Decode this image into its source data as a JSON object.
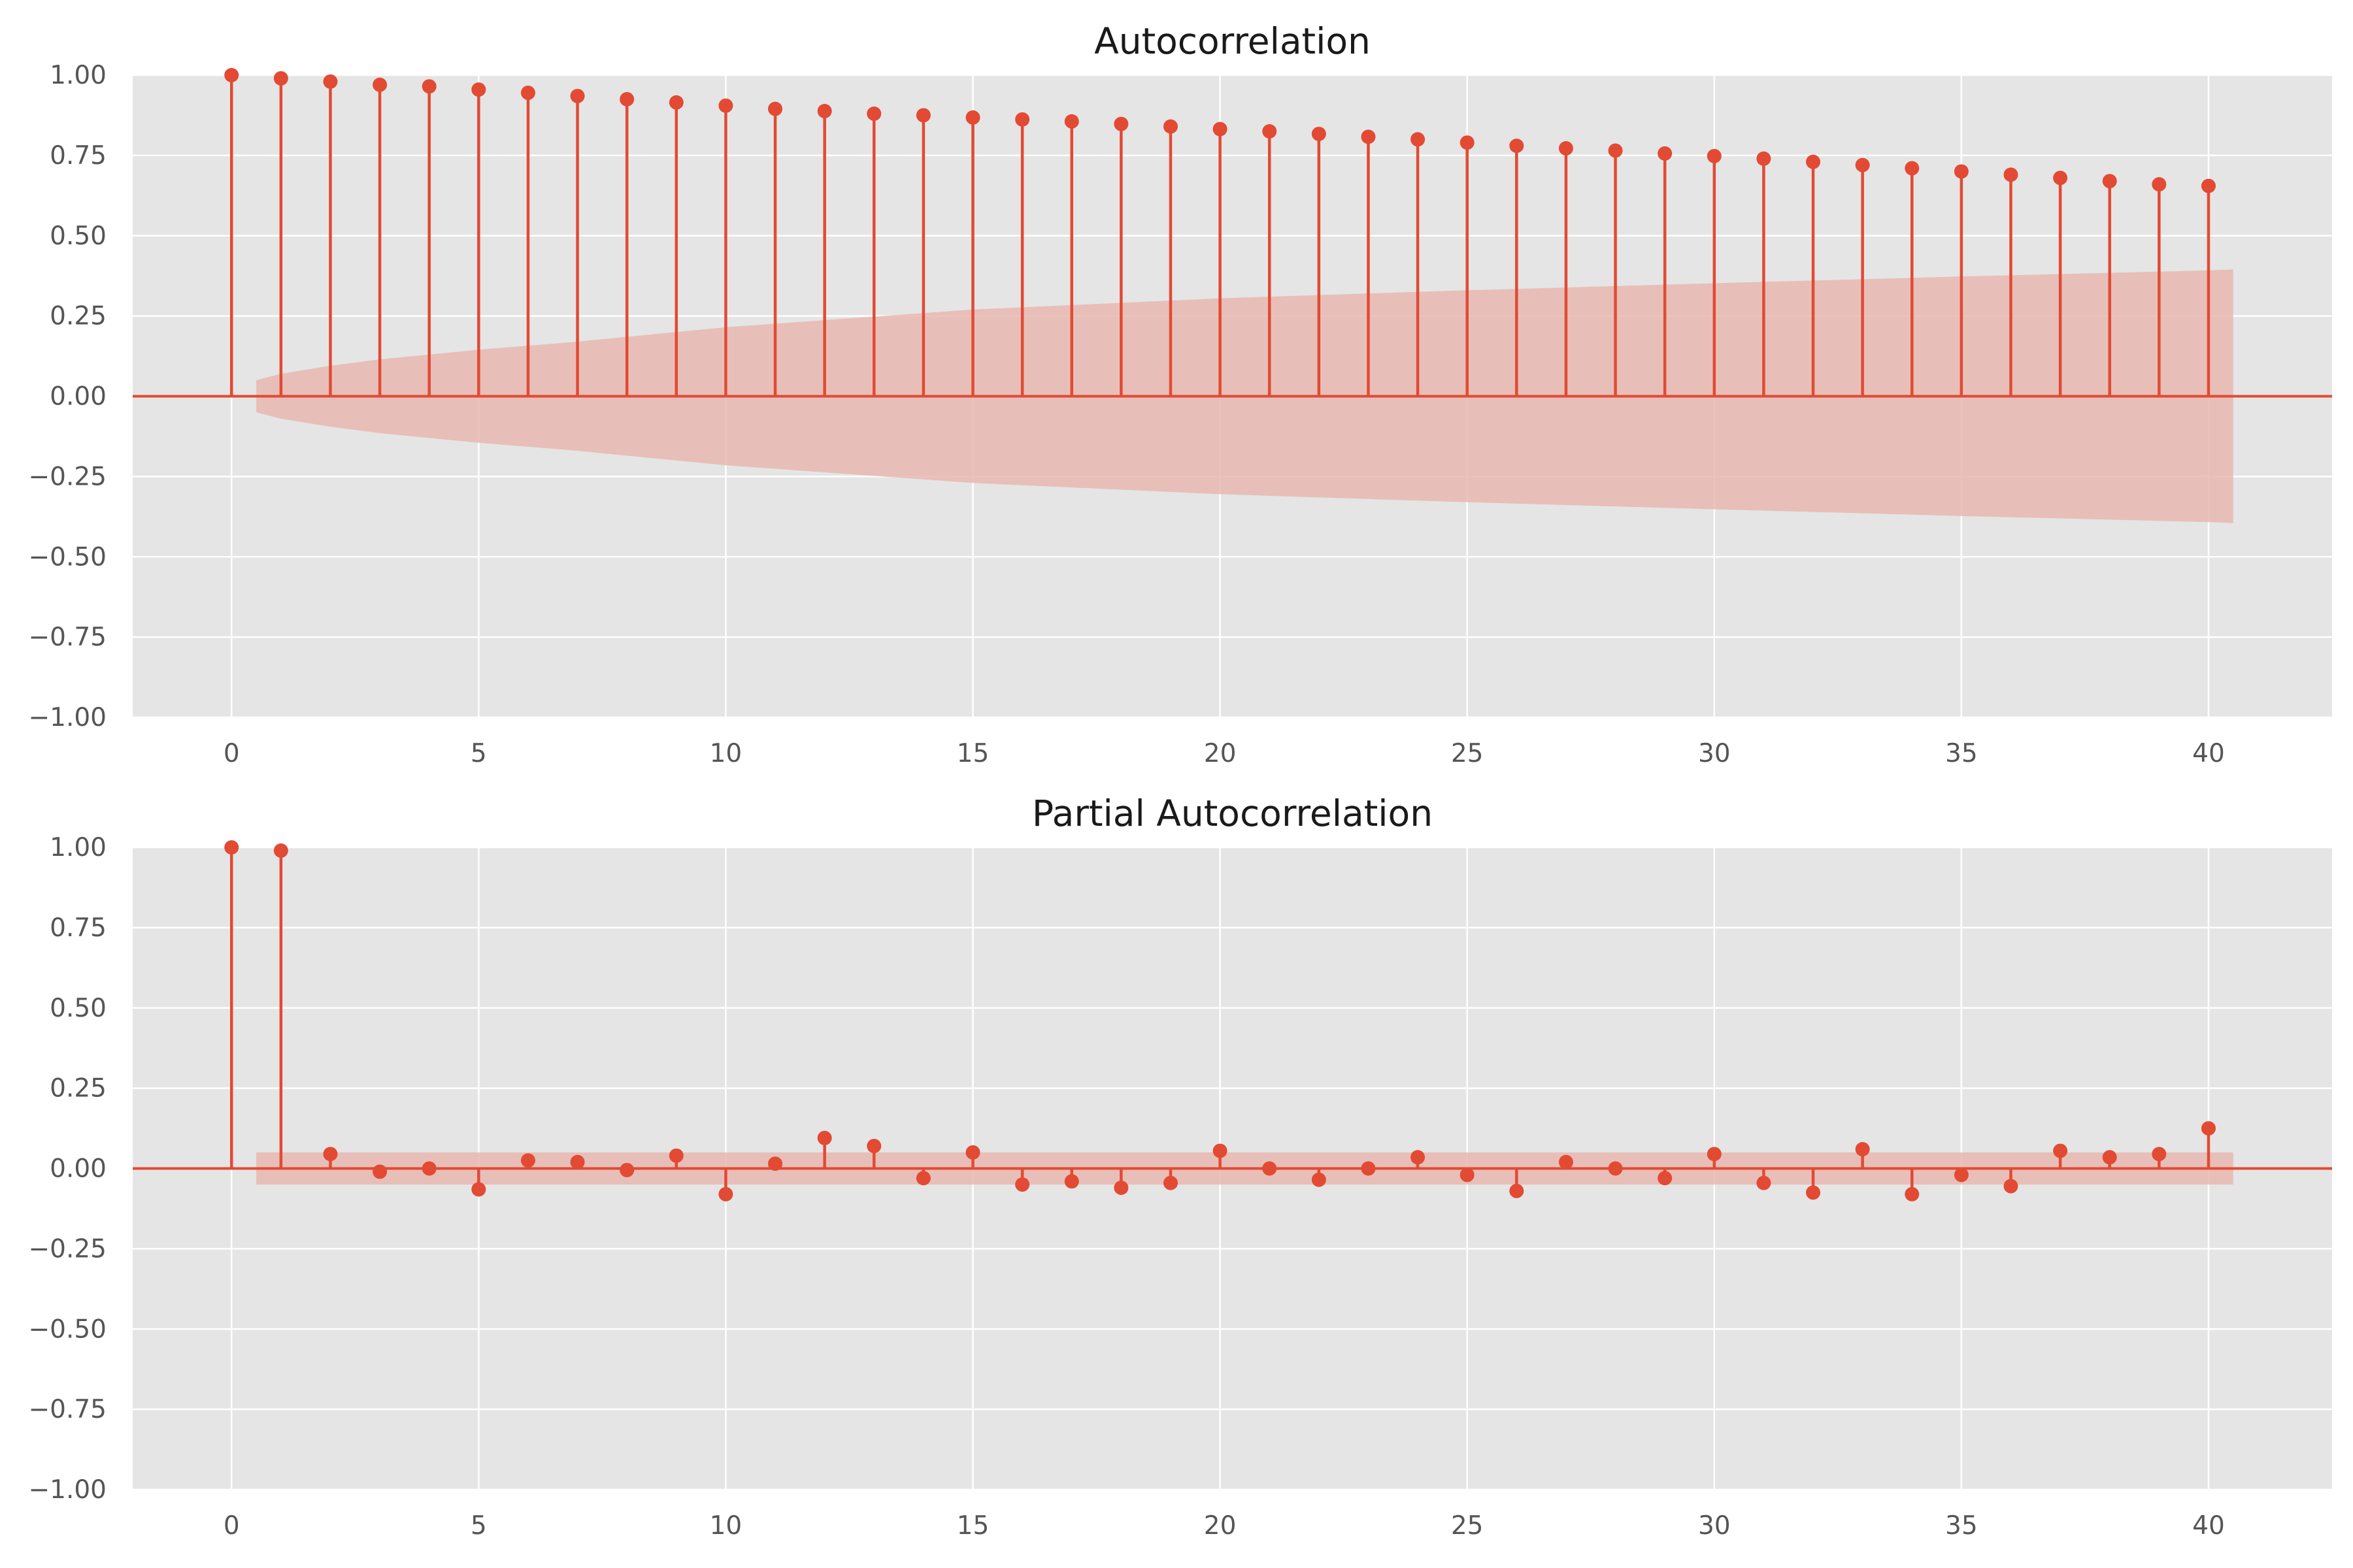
{
  "colors": {
    "accent": "#E24A33",
    "band": "#E8B8B0",
    "panel_bg": "#E5E5E5",
    "grid": "#FFFFFF",
    "text": "#555555",
    "title_text": "#1A1A1A"
  },
  "chart_data": [
    {
      "type": "stem",
      "title": "Autocorrelation",
      "xlabel": "",
      "ylabel": "",
      "xlim": [
        -2,
        42.5
      ],
      "ylim": [
        -1.0,
        1.0
      ],
      "xticks": [
        "0",
        "5",
        "10",
        "15",
        "20",
        "25",
        "30",
        "35",
        "40"
      ],
      "yticks": [
        "1.00",
        "0.75",
        "0.50",
        "0.25",
        "0.00",
        "−0.25",
        "−0.50",
        "−0.75",
        "−1.00"
      ],
      "grid": true,
      "lags": [
        0,
        1,
        2,
        3,
        4,
        5,
        6,
        7,
        8,
        9,
        10,
        11,
        12,
        13,
        14,
        15,
        16,
        17,
        18,
        19,
        20,
        21,
        22,
        23,
        24,
        25,
        26,
        27,
        28,
        29,
        30,
        31,
        32,
        33,
        34,
        35,
        36,
        37,
        38,
        39,
        40
      ],
      "values": [
        1.0,
        0.99,
        0.98,
        0.97,
        0.965,
        0.955,
        0.945,
        0.935,
        0.925,
        0.915,
        0.905,
        0.895,
        0.888,
        0.88,
        0.875,
        0.868,
        0.862,
        0.856,
        0.848,
        0.84,
        0.832,
        0.825,
        0.817,
        0.808,
        0.8,
        0.79,
        0.78,
        0.772,
        0.765,
        0.756,
        0.748,
        0.74,
        0.73,
        0.72,
        0.71,
        0.7,
        0.69,
        0.68,
        0.67,
        0.66,
        0.655
      ],
      "confidence_band": {
        "x": [
          0.5,
          1,
          2,
          3,
          4,
          5,
          7,
          10,
          15,
          20,
          25,
          30,
          35,
          40,
          40.5
        ],
        "upper": [
          0.05,
          0.07,
          0.095,
          0.115,
          0.13,
          0.145,
          0.17,
          0.215,
          0.27,
          0.305,
          0.33,
          0.352,
          0.373,
          0.392,
          0.395
        ]
      }
    },
    {
      "type": "stem",
      "title": "Partial Autocorrelation",
      "xlabel": "",
      "ylabel": "",
      "xlim": [
        -2,
        42.5
      ],
      "ylim": [
        -1.0,
        1.0
      ],
      "xticks": [
        "0",
        "5",
        "10",
        "15",
        "20",
        "25",
        "30",
        "35",
        "40"
      ],
      "yticks": [
        "1.00",
        "0.75",
        "0.50",
        "0.25",
        "0.00",
        "−0.25",
        "−0.50",
        "−0.75",
        "−1.00"
      ],
      "grid": true,
      "lags": [
        0,
        1,
        2,
        3,
        4,
        5,
        6,
        7,
        8,
        9,
        10,
        11,
        12,
        13,
        14,
        15,
        16,
        17,
        18,
        19,
        20,
        21,
        22,
        23,
        24,
        25,
        26,
        27,
        28,
        29,
        30,
        31,
        32,
        33,
        34,
        35,
        36,
        37,
        38,
        39,
        40
      ],
      "values": [
        1.0,
        0.99,
        0.045,
        -0.01,
        0.0,
        -0.065,
        0.025,
        0.02,
        -0.005,
        0.04,
        -0.08,
        0.015,
        0.095,
        0.07,
        -0.03,
        0.05,
        -0.05,
        -0.04,
        -0.06,
        -0.045,
        0.055,
        0.0,
        -0.035,
        0.0,
        0.035,
        -0.02,
        -0.07,
        0.02,
        0.0,
        -0.03,
        0.045,
        -0.045,
        -0.075,
        0.06,
        -0.08,
        -0.02,
        -0.055,
        0.055,
        0.035,
        0.045,
        0.125
      ],
      "confidence_band": {
        "x": [
          0.5,
          40.5
        ],
        "upper": [
          0.05,
          0.05
        ]
      }
    }
  ]
}
